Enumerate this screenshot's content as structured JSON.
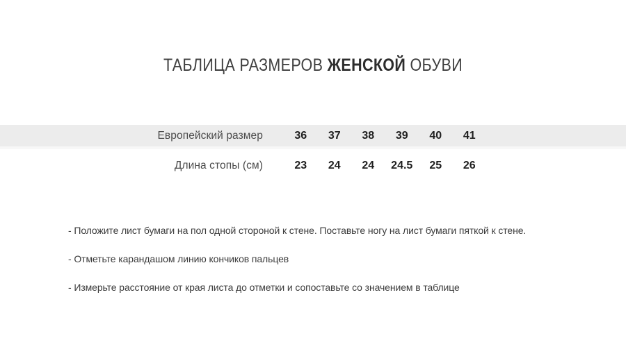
{
  "title": {
    "prefix": "ТАБЛИЦА РАЗМЕРОВ ",
    "highlight": "ЖЕНСКОЙ",
    "suffix": " ОБУВИ"
  },
  "size_table": {
    "rows": [
      {
        "label": "Европейский размер",
        "values": [
          "36",
          "37",
          "38",
          "39",
          "40",
          "41"
        ]
      },
      {
        "label": "Длина стопы (см)",
        "values": [
          "23",
          "24",
          "24",
          "24.5",
          "25",
          "26"
        ]
      }
    ]
  },
  "instructions": {
    "items": [
      "- Положите лист бумаги на пол одной стороной к стене. Поставьте ногу на лист бумаги пяткой к стене.",
      "- Отметьте карандашом линию кончиков пальцев",
      "- Измерьте расстояние от края листа до отметки и сопоставьте со значением в таблице"
    ]
  },
  "colors": {
    "stripe_background": "#ececec",
    "stripe_bottom_edge": "#f7f7f7",
    "title_text": "#3f3f3f",
    "title_highlight_text": "#2d2d2d",
    "row_label_text": "#4a4a4a",
    "value_text": "#1f1f1f",
    "instruction_text": "#3b3b3b",
    "page_background": "#ffffff"
  }
}
